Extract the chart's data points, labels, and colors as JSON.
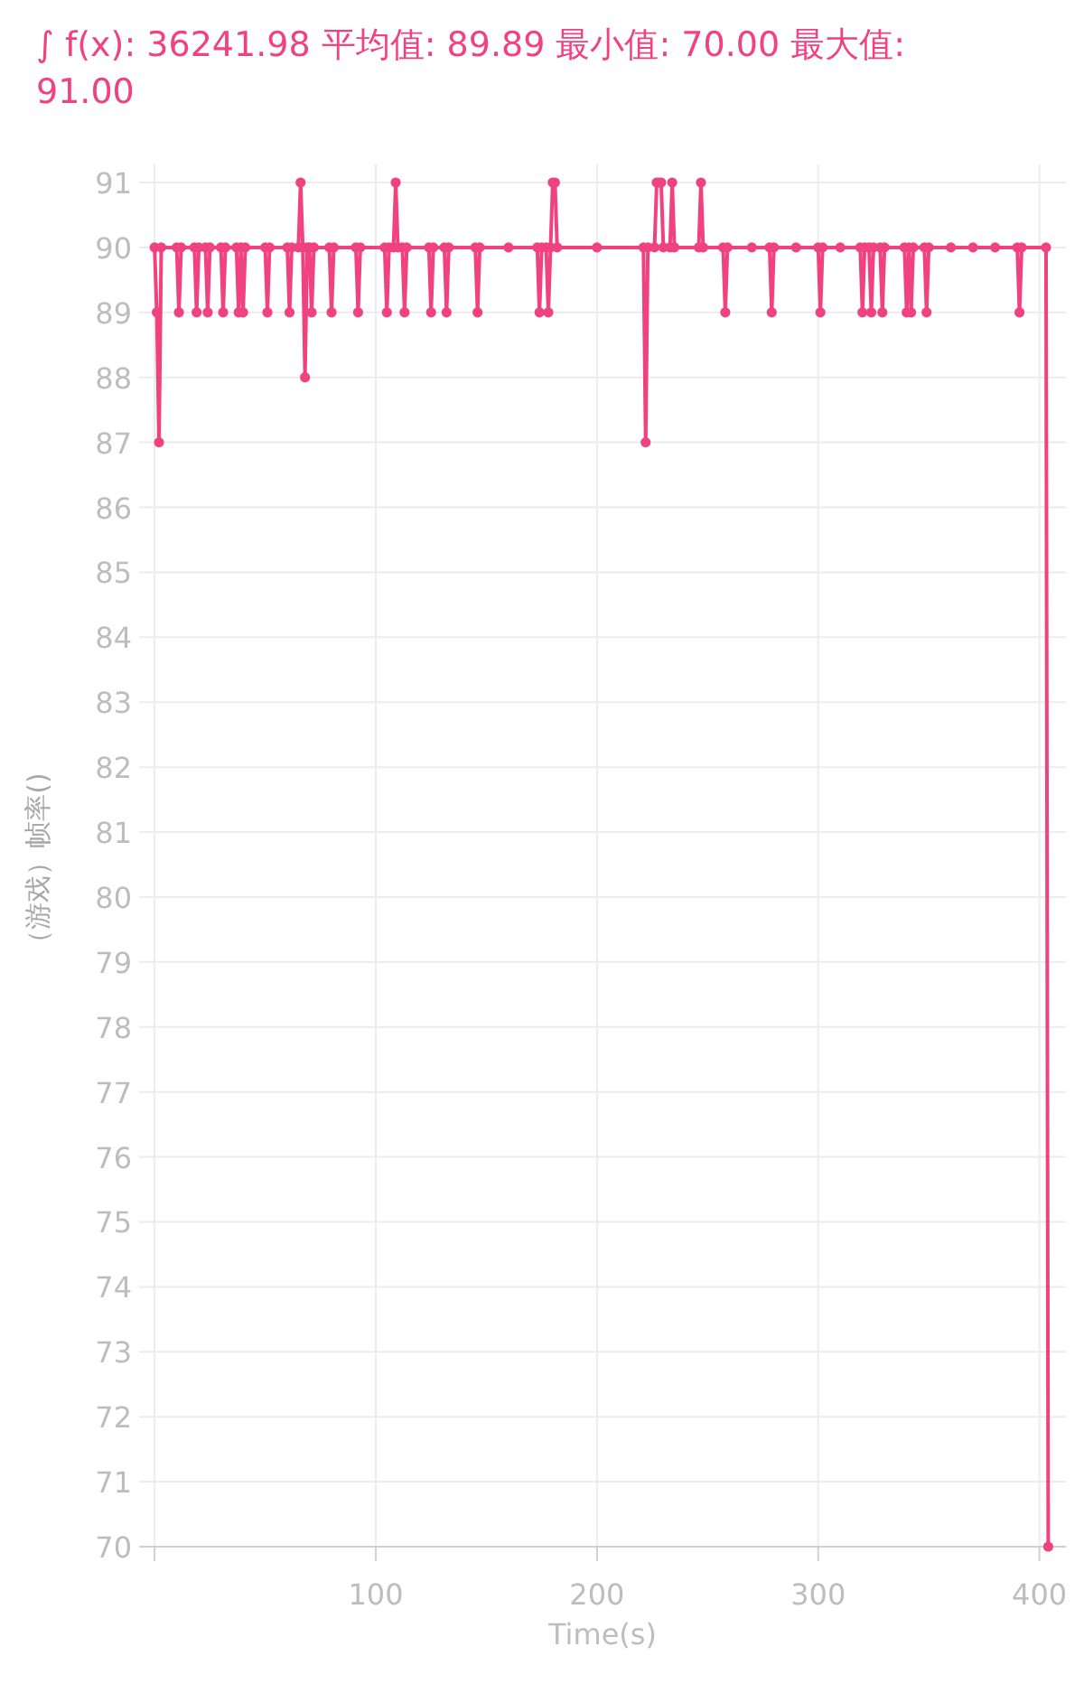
{
  "chart_data": {
    "type": "line",
    "title": "∫ f(x): 36241.98 平均值: 89.89 最小值: 70.00 最大值: 91.00",
    "xlabel": "Time(s)",
    "ylabel": "（游戏）帧率()",
    "xlim": [
      -7,
      412
    ],
    "xticks": [
      {
        "value": 0,
        "label": null
      },
      100,
      200,
      300,
      400
    ],
    "ylim": [
      70,
      91
    ],
    "yticks": [
      70,
      71,
      72,
      73,
      74,
      75,
      76,
      77,
      78,
      79,
      80,
      81,
      82,
      83,
      84,
      85,
      86,
      87,
      88,
      89,
      90,
      91
    ],
    "grid": true,
    "marker": "circle",
    "line_style": "solid",
    "series": [
      {
        "color": "#f0427f",
        "x": [
          0,
          1,
          2,
          3,
          10,
          11,
          12,
          18,
          19,
          20,
          23,
          24,
          25,
          30,
          31,
          32,
          37,
          38,
          39,
          40,
          41,
          50,
          51,
          52,
          60,
          61,
          62,
          65,
          66,
          67,
          68,
          69,
          70,
          71,
          72,
          79,
          80,
          81,
          91,
          92,
          93,
          104,
          105,
          106,
          108,
          109,
          110,
          112,
          113,
          114,
          124,
          125,
          126,
          131,
          132,
          133,
          145,
          146,
          147,
          160,
          173,
          174,
          175,
          177,
          178,
          179,
          180,
          181,
          182,
          200,
          221,
          222,
          223,
          226,
          227,
          228,
          229,
          230,
          233,
          234,
          235,
          246,
          247,
          248,
          257,
          258,
          259,
          270,
          278,
          279,
          280,
          290,
          300,
          301,
          302,
          310,
          319,
          320,
          321,
          323,
          324,
          325,
          328,
          329,
          330,
          339,
          340,
          341,
          342,
          343,
          348,
          349,
          350,
          360,
          370,
          380,
          390,
          391,
          392,
          403,
          404
        ],
        "values": [
          90,
          89,
          87,
          90,
          90,
          89,
          90,
          90,
          89,
          90,
          90,
          89,
          90,
          90,
          89,
          90,
          90,
          89,
          90,
          89,
          90,
          90,
          89,
          90,
          90,
          89,
          90,
          90,
          91,
          90,
          88,
          90,
          90,
          89,
          90,
          90,
          89,
          90,
          90,
          89,
          90,
          90,
          89,
          90,
          90,
          91,
          90,
          90,
          89,
          90,
          90,
          89,
          90,
          90,
          89,
          90,
          90,
          89,
          90,
          90,
          90,
          89,
          90,
          90,
          89,
          90,
          91,
          91,
          90,
          90,
          90,
          87,
          90,
          90,
          91,
          91,
          91,
          90,
          90,
          91,
          90,
          90,
          91,
          90,
          90,
          89,
          90,
          90,
          90,
          89,
          90,
          90,
          90,
          89,
          90,
          90,
          90,
          89,
          90,
          90,
          89,
          90,
          90,
          89,
          90,
          90,
          89,
          90,
          89,
          90,
          90,
          89,
          90,
          90,
          90,
          90,
          90,
          89,
          90,
          90,
          70
        ]
      }
    ]
  }
}
